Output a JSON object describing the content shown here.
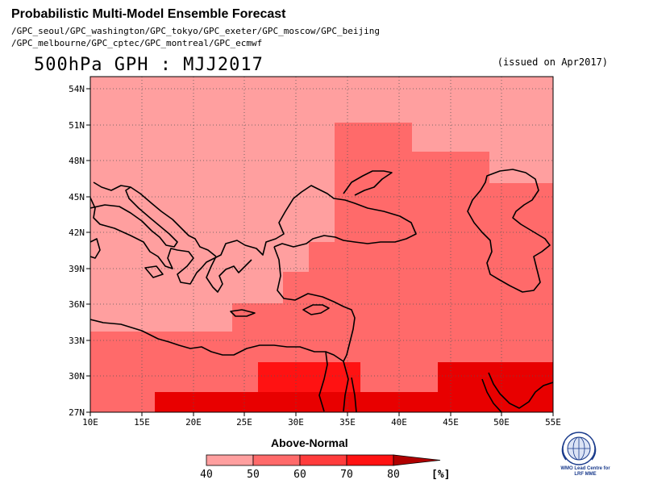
{
  "header": {
    "title": "Probabilistic Multi-Model Ensemble Forecast",
    "models_line1": "/GPC_seoul/GPC_washington/GPC_tokyo/GPC_exeter/GPC_moscow/GPC_beijing",
    "models_line2": "/GPC_melbourne/GPC_cptec/GPC_montreal/GPC_ecmwf",
    "variable": "500hPa GPH : MJJ2017",
    "issued": "(issued on Apr2017)"
  },
  "map": {
    "lon_range": [
      10,
      55
    ],
    "lat_range": [
      27,
      55
    ],
    "x_ticks": [
      "10E",
      "15E",
      "20E",
      "25E",
      "30E",
      "35E",
      "40E",
      "45E",
      "50E",
      "55E"
    ],
    "y_ticks": [
      "27N",
      "30N",
      "33N",
      "36N",
      "39N",
      "42N",
      "45N",
      "48N",
      "51N",
      "54N"
    ],
    "grid": true
  },
  "colorbar": {
    "title": "Above-Normal",
    "labels": [
      "40",
      "50",
      "60",
      "70",
      "80"
    ],
    "unit": "[%]",
    "colors": [
      "#ff9f9f",
      "#ff6a6a",
      "#ff3c3c",
      "#ff1212",
      "#e80000"
    ]
  },
  "logo": {
    "line1": "WMO Lead Centre for",
    "line2": "LRF MME"
  }
}
